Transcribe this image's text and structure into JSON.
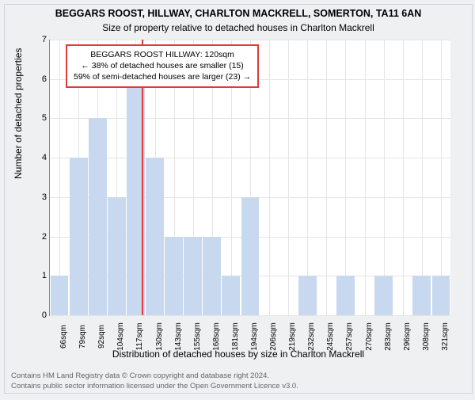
{
  "header": {
    "title_line1": "BEGGARS ROOST, HILLWAY, CHARLTON MACKRELL, SOMERTON, TA11 6AN",
    "title_line2": "Size of property relative to detached houses in Charlton Mackrell"
  },
  "axes": {
    "ylabel": "Number of detached properties",
    "xlabel": "Distribution of detached houses by size in Charlton Mackrell",
    "ylim": [
      0,
      7
    ],
    "ytick_step": 1,
    "yticks": [
      0,
      1,
      2,
      3,
      4,
      5,
      6,
      7
    ],
    "xticks": [
      "66sqm",
      "79sqm",
      "92sqm",
      "104sqm",
      "117sqm",
      "130sqm",
      "143sqm",
      "155sqm",
      "168sqm",
      "181sqm",
      "194sqm",
      "206sqm",
      "219sqm",
      "232sqm",
      "245sqm",
      "257sqm",
      "270sqm",
      "283sqm",
      "296sqm",
      "308sqm",
      "321sqm"
    ]
  },
  "bars": {
    "values": [
      1,
      4,
      5,
      3,
      6,
      4,
      2,
      2,
      2,
      1,
      3,
      0,
      0,
      1,
      0,
      1,
      0,
      1,
      0,
      1,
      1
    ],
    "color": "#c8d9ef",
    "bar_width_frac": 0.95
  },
  "marker": {
    "index": 4.3,
    "color": "#e03a3a"
  },
  "annotation": {
    "line1": "BEGGARS ROOST HILLWAY: 120sqm",
    "line2": "← 38% of detached houses are smaller (15)",
    "line3": "59% of semi-detached houses are larger (23) →",
    "border_color": "#e03a3a"
  },
  "footer": {
    "line1": "Contains HM Land Registry data © Crown copyright and database right 2024.",
    "line2": "Contains public sector information licensed under the Open Government Licence v3.0."
  },
  "style": {
    "background": "#eef0f2",
    "plot_background": "#ffffff",
    "grid_color": "#e5e5e5",
    "axis_color": "#888888",
    "title_fontsize": 12.5,
    "subtitle_fontsize": 12,
    "tick_fontsize": 11,
    "annotation_fontsize": 10.5,
    "footer_fontsize": 9.5,
    "footer_color": "#666666"
  }
}
